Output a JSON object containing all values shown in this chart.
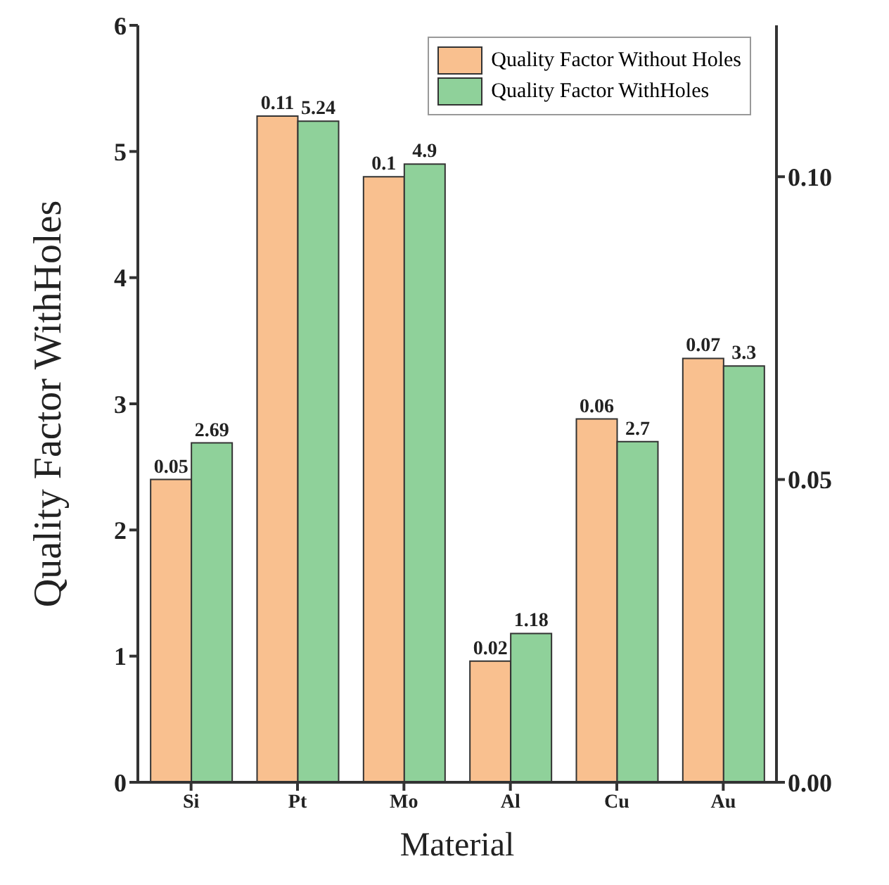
{
  "chart_data": {
    "type": "bar",
    "xlabel": "Material",
    "ylabel": "Quality Factor WithHoles",
    "categories": [
      "Si",
      "Pt",
      "Mo",
      "Al",
      "Cu",
      "Au"
    ],
    "series": [
      {
        "name": "Quality Factor Without Holes",
        "color": "#f9c08f",
        "axis": "y2",
        "values": [
          0.05,
          0.11,
          0.1,
          0.02,
          0.06,
          0.07
        ]
      },
      {
        "name": "Quality Factor WithHoles",
        "color": "#8fd19a",
        "values": [
          2.69,
          5.24,
          4.9,
          1.18,
          2.7,
          3.3
        ]
      }
    ],
    "ylim": [
      0,
      6
    ],
    "yticks": [
      0,
      1,
      2,
      3,
      4,
      5,
      6
    ],
    "y2lim": [
      0,
      0.125
    ],
    "y2ticks": [
      {
        "value": 0,
        "label": "0.00"
      },
      {
        "value": 0.05,
        "label": "0.05"
      },
      {
        "value": 0.1,
        "label": "0.10"
      }
    ],
    "data_labels": true,
    "legend": "top right",
    "grid": false
  }
}
